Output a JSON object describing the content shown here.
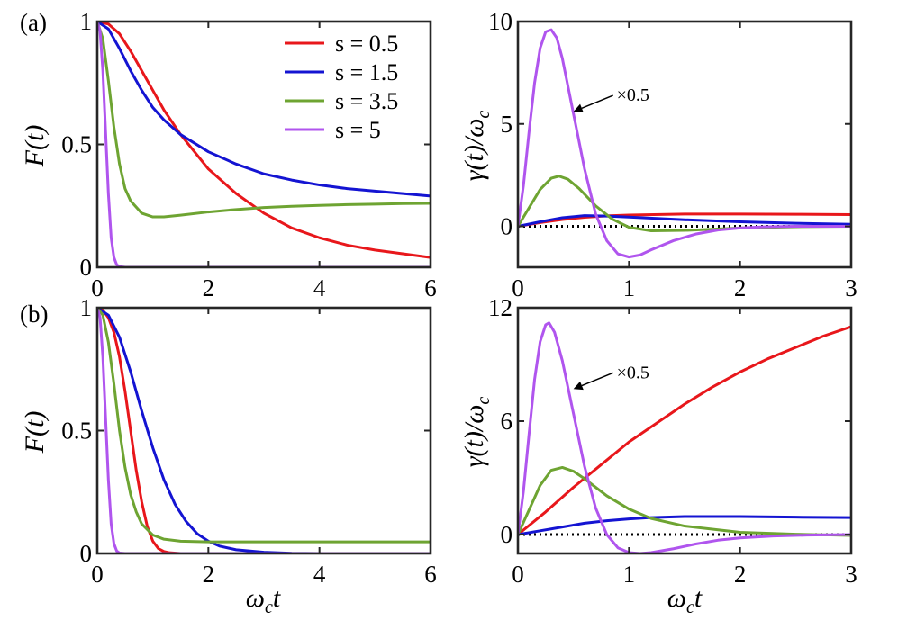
{
  "figure": {
    "panel_labels": [
      "(a)",
      "(b)"
    ],
    "ylabel_left": "F(t)",
    "ylabel_right": "γ(t)/ω",
    "ylabel_right_sub": "c",
    "xlabel_main": "ω",
    "xlabel_sub": "c",
    "xlabel_tail": "t",
    "colors": {
      "s0.5": "#e8171b",
      "s1.5": "#1414d2",
      "s3.5": "#6ea432",
      "s5": "#b055ee",
      "zero_line": "#000000"
    }
  },
  "chart_data": [
    {
      "id": "a-left",
      "type": "line",
      "panel": "(a)",
      "xlim": [
        0,
        6
      ],
      "ylim": [
        0,
        1
      ],
      "xticks": [
        0,
        2,
        4,
        6
      ],
      "xtick_labels": [
        "0",
        "2",
        "4",
        "6"
      ],
      "yticks": [
        0,
        0.5,
        1
      ],
      "ytick_labels": [
        "0",
        "0.5",
        "1"
      ],
      "ylabel": "F(t)",
      "xlabel": "",
      "legend": {
        "location": "top-right",
        "entries": [
          "s = 0.5",
          "s = 1.5",
          "s = 3.5",
          "s = 5"
        ]
      },
      "series": [
        {
          "name": "s = 0.5",
          "color": "#e8171b",
          "x": [
            0,
            0.2,
            0.4,
            0.6,
            0.8,
            1,
            1.2,
            1.5,
            2,
            2.5,
            3,
            3.5,
            4,
            4.5,
            5,
            5.5,
            6
          ],
          "y": [
            1,
            0.99,
            0.95,
            0.88,
            0.8,
            0.72,
            0.64,
            0.54,
            0.4,
            0.3,
            0.22,
            0.16,
            0.12,
            0.09,
            0.07,
            0.055,
            0.04
          ]
        },
        {
          "name": "s = 1.5",
          "color": "#1414d2",
          "x": [
            0,
            0.2,
            0.4,
            0.6,
            0.8,
            1,
            1.2,
            1.5,
            2,
            2.5,
            3,
            3.5,
            4,
            4.5,
            5,
            5.5,
            6
          ],
          "y": [
            1,
            0.97,
            0.89,
            0.8,
            0.72,
            0.65,
            0.6,
            0.54,
            0.47,
            0.42,
            0.38,
            0.355,
            0.335,
            0.32,
            0.31,
            0.3,
            0.29
          ]
        },
        {
          "name": "s = 3.5",
          "color": "#6ea432",
          "x": [
            0,
            0.1,
            0.2,
            0.3,
            0.4,
            0.5,
            0.6,
            0.8,
            1,
            1.2,
            1.5,
            2,
            2.5,
            3,
            3.5,
            4,
            4.5,
            5,
            5.5,
            6
          ],
          "y": [
            1,
            0.93,
            0.76,
            0.57,
            0.42,
            0.32,
            0.27,
            0.22,
            0.205,
            0.205,
            0.212,
            0.225,
            0.235,
            0.243,
            0.248,
            0.252,
            0.255,
            0.257,
            0.259,
            0.26
          ]
        },
        {
          "name": "s = 5",
          "color": "#b055ee",
          "x": [
            0,
            0.05,
            0.1,
            0.15,
            0.2,
            0.25,
            0.3,
            0.35,
            0.4,
            0.5,
            0.7,
            1,
            2,
            3,
            4,
            5,
            6
          ],
          "y": [
            1,
            0.96,
            0.8,
            0.55,
            0.3,
            0.12,
            0.04,
            0.01,
            0.003,
            0,
            0,
            0,
            0,
            0,
            0,
            0,
            0
          ]
        }
      ]
    },
    {
      "id": "a-right",
      "type": "line",
      "panel": "(a)",
      "xlim": [
        0,
        3
      ],
      "ylim": [
        -2,
        10
      ],
      "xticks": [
        0,
        1,
        2,
        3
      ],
      "xtick_labels": [
        "0",
        "1",
        "2",
        "3"
      ],
      "yticks": [
        0,
        5,
        10
      ],
      "ytick_labels": [
        "0",
        "5",
        "10"
      ],
      "ylabel": "γ(t)/ω_c",
      "xlabel": "",
      "annotation": {
        "text": "×0.5",
        "target": "s = 5",
        "at": [
          0.5,
          5.6
        ]
      },
      "zero_line": true,
      "series": [
        {
          "name": "s = 0.5",
          "color": "#e8171b",
          "x": [
            0,
            0.2,
            0.4,
            0.6,
            0.8,
            1,
            1.5,
            2,
            2.5,
            3
          ],
          "y": [
            0,
            0.18,
            0.33,
            0.44,
            0.51,
            0.55,
            0.6,
            0.6,
            0.59,
            0.57
          ]
        },
        {
          "name": "s = 1.5",
          "color": "#1414d2",
          "x": [
            0,
            0.2,
            0.4,
            0.6,
            0.8,
            1,
            1.5,
            2,
            2.5,
            3
          ],
          "y": [
            0,
            0.22,
            0.42,
            0.52,
            0.5,
            0.45,
            0.32,
            0.22,
            0.15,
            0.1
          ]
        },
        {
          "name": "s = 3.5",
          "color": "#6ea432",
          "x": [
            0,
            0.1,
            0.2,
            0.3,
            0.37,
            0.45,
            0.55,
            0.7,
            0.85,
            1,
            1.2,
            1.5,
            2,
            2.5,
            3
          ],
          "y": [
            0,
            0.9,
            1.8,
            2.35,
            2.45,
            2.3,
            1.85,
            1.0,
            0.35,
            -0.05,
            -0.22,
            -0.2,
            -0.08,
            -0.02,
            0
          ]
        },
        {
          "name": "s = 5",
          "color": "#b055ee",
          "x": [
            0,
            0.05,
            0.1,
            0.15,
            0.2,
            0.25,
            0.3,
            0.35,
            0.4,
            0.5,
            0.6,
            0.7,
            0.8,
            0.9,
            1,
            1.1,
            1.2,
            1.4,
            1.6,
            1.8,
            2,
            2.2,
            2.5,
            3
          ],
          "y": [
            0,
            2,
            4.6,
            7,
            8.7,
            9.5,
            9.6,
            9.2,
            8.2,
            5.5,
            2.8,
            0.6,
            -0.7,
            -1.35,
            -1.5,
            -1.4,
            -1.15,
            -0.7,
            -0.38,
            -0.18,
            -0.08,
            -0.03,
            0,
            0
          ]
        }
      ]
    },
    {
      "id": "b-left",
      "type": "line",
      "panel": "(b)",
      "xlim": [
        0,
        6
      ],
      "ylim": [
        0,
        1
      ],
      "xticks": [
        0,
        2,
        4,
        6
      ],
      "xtick_labels": [
        "0",
        "2",
        "4",
        "6"
      ],
      "yticks": [
        0,
        0.5,
        1
      ],
      "ytick_labels": [
        "0",
        "0.5",
        "1"
      ],
      "ylabel": "F(t)",
      "xlabel": "ω_c t",
      "series": [
        {
          "name": "s = 0.5",
          "color": "#e8171b",
          "x": [
            0,
            0.1,
            0.2,
            0.3,
            0.4,
            0.5,
            0.6,
            0.7,
            0.8,
            0.9,
            1,
            1.1,
            1.2,
            1.3,
            1.5,
            2,
            3,
            4,
            5,
            6
          ],
          "y": [
            1,
            0.99,
            0.96,
            0.9,
            0.8,
            0.66,
            0.5,
            0.34,
            0.21,
            0.11,
            0.05,
            0.02,
            0.008,
            0.003,
            0,
            0,
            0,
            0,
            0,
            0
          ]
        },
        {
          "name": "s = 1.5",
          "color": "#1414d2",
          "x": [
            0,
            0.2,
            0.4,
            0.6,
            0.8,
            1,
            1.2,
            1.4,
            1.6,
            1.8,
            2,
            2.2,
            2.5,
            3,
            3.5,
            4,
            5,
            6
          ],
          "y": [
            1,
            0.97,
            0.88,
            0.74,
            0.58,
            0.43,
            0.3,
            0.2,
            0.13,
            0.08,
            0.05,
            0.03,
            0.015,
            0.005,
            0.001,
            0,
            0,
            0
          ]
        },
        {
          "name": "s = 3.5",
          "color": "#6ea432",
          "x": [
            0,
            0.1,
            0.2,
            0.3,
            0.4,
            0.5,
            0.6,
            0.7,
            0.8,
            1,
            1.2,
            1.5,
            2,
            2.5,
            3,
            4,
            5,
            6
          ],
          "y": [
            1,
            0.97,
            0.86,
            0.69,
            0.5,
            0.35,
            0.24,
            0.17,
            0.12,
            0.075,
            0.058,
            0.05,
            0.047,
            0.047,
            0.047,
            0.047,
            0.047,
            0.047
          ]
        },
        {
          "name": "s = 5",
          "color": "#b055ee",
          "x": [
            0,
            0.05,
            0.1,
            0.15,
            0.2,
            0.25,
            0.3,
            0.35,
            0.4,
            0.5,
            1,
            2,
            3,
            4,
            5,
            6
          ],
          "y": [
            1,
            0.96,
            0.8,
            0.55,
            0.3,
            0.12,
            0.04,
            0.01,
            0.002,
            0,
            0,
            0,
            0,
            0,
            0,
            0
          ]
        }
      ]
    },
    {
      "id": "b-right",
      "type": "line",
      "panel": "(b)",
      "xlim": [
        0,
        3
      ],
      "ylim": [
        -1,
        12
      ],
      "xticks": [
        0,
        1,
        2,
        3
      ],
      "xtick_labels": [
        "0",
        "1",
        "2",
        "3"
      ],
      "yticks": [
        0,
        6,
        12
      ],
      "ytick_labels": [
        "0",
        "6",
        "12"
      ],
      "ylabel": "γ(t)/ω_c",
      "xlabel": "ω_c t",
      "annotation": {
        "text": "×0.5",
        "target": "s = 5",
        "at": [
          0.5,
          7.7
        ]
      },
      "zero_line": true,
      "series": [
        {
          "name": "s = 0.5",
          "color": "#e8171b",
          "x": [
            0,
            0.25,
            0.5,
            0.75,
            1,
            1.25,
            1.5,
            1.75,
            2,
            2.25,
            2.5,
            2.75,
            3
          ],
          "y": [
            0,
            1.2,
            2.5,
            3.7,
            4.9,
            5.9,
            6.9,
            7.8,
            8.6,
            9.3,
            9.9,
            10.5,
            11.0
          ]
        },
        {
          "name": "s = 1.5",
          "color": "#1414d2",
          "x": [
            0,
            0.2,
            0.4,
            0.6,
            0.8,
            1,
            1.2,
            1.5,
            2,
            2.5,
            3
          ],
          "y": [
            0,
            0.2,
            0.4,
            0.6,
            0.73,
            0.83,
            0.9,
            0.95,
            0.95,
            0.92,
            0.9
          ]
        },
        {
          "name": "s = 3.5",
          "color": "#6ea432",
          "x": [
            0,
            0.1,
            0.2,
            0.3,
            0.4,
            0.5,
            0.6,
            0.7,
            0.8,
            1,
            1.2,
            1.5,
            2,
            2.5,
            3
          ],
          "y": [
            0,
            1.3,
            2.6,
            3.4,
            3.55,
            3.35,
            2.95,
            2.5,
            2.05,
            1.35,
            0.85,
            0.45,
            0.12,
            0.02,
            -0.05
          ]
        },
        {
          "name": "s = 5",
          "color": "#b055ee",
          "x": [
            0,
            0.05,
            0.1,
            0.15,
            0.2,
            0.25,
            0.28,
            0.33,
            0.4,
            0.5,
            0.6,
            0.7,
            0.8,
            0.9,
            1,
            1.1,
            1.2,
            1.4,
            1.6,
            1.8,
            2,
            2.3,
            2.6,
            3
          ],
          "y": [
            0,
            2.3,
            5.3,
            8.2,
            10.2,
            11.1,
            11.2,
            10.7,
            9.2,
            6.4,
            3.6,
            1.4,
            0,
            -0.7,
            -0.95,
            -1.0,
            -0.95,
            -0.75,
            -0.5,
            -0.3,
            -0.18,
            -0.08,
            -0.03,
            0
          ]
        }
      ]
    }
  ]
}
